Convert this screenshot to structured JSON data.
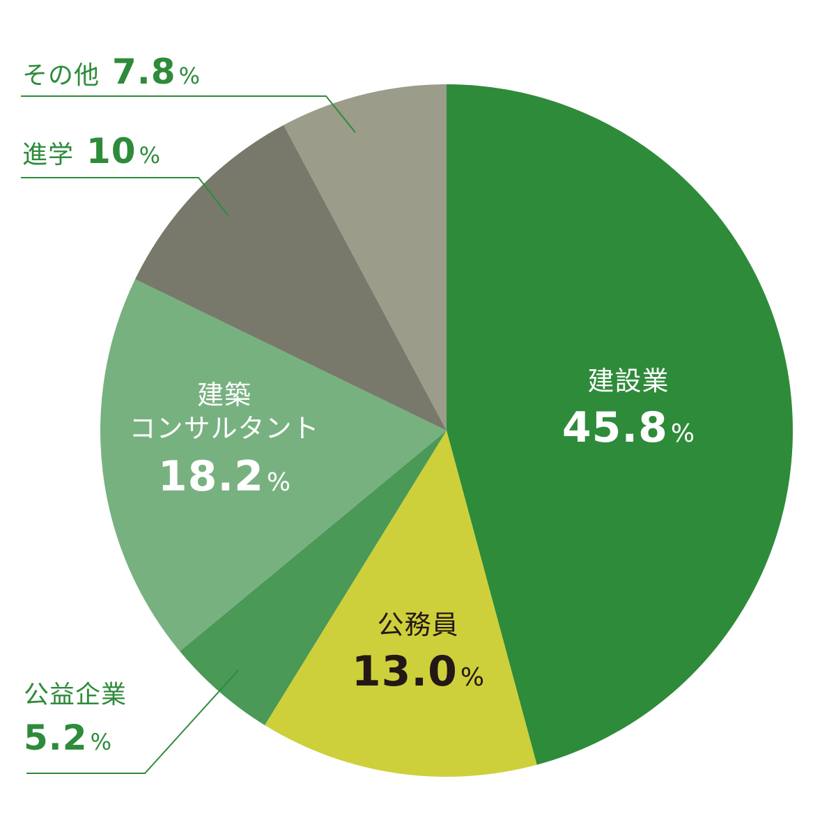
{
  "chart_data": {
    "type": "pie",
    "start": "12 o'clock",
    "direction": "clockwise",
    "slices": [
      {
        "label": "建設業",
        "value": 45.8,
        "value_text": "45.8",
        "unit": "%",
        "color": "#2e8b3a"
      },
      {
        "label": "公務員",
        "value": 13.0,
        "value_text": "13.0",
        "unit": "%",
        "color": "#cdd03a"
      },
      {
        "label": "公益企業",
        "value": 5.2,
        "value_text": "5.2",
        "unit": "%",
        "color": "#4a9956"
      },
      {
        "label_lines": [
          "建築",
          "コンサルタント"
        ],
        "value": 18.2,
        "value_text": "18.2",
        "unit": "%",
        "color": "#78b180"
      },
      {
        "label": "進学",
        "value": 10,
        "value_text": "10",
        "unit": "%",
        "color": "#78796a"
      },
      {
        "label": "その他",
        "value": 7.8,
        "value_text": "7.8",
        "unit": "%",
        "color": "#9b9c89"
      }
    ],
    "leader_line_color": "#2e8b3a"
  }
}
